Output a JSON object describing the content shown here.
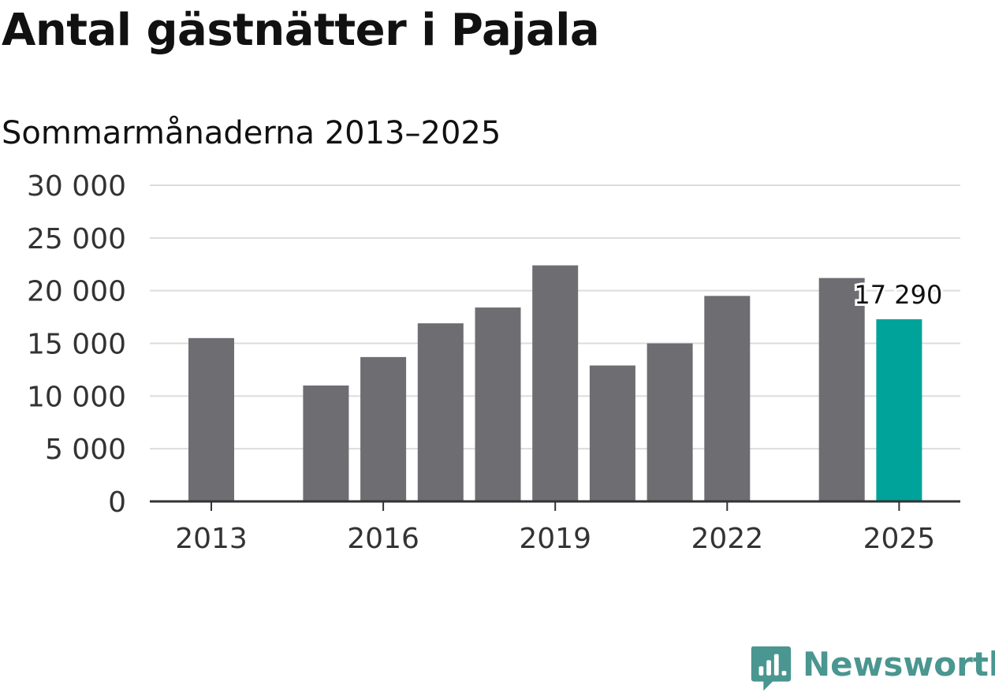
{
  "title": "Antal gästnätter i Pajala",
  "subtitle": "Sommarmånaderna 2013–2025",
  "brand": {
    "name": "Newsworthy",
    "icon": "newsworthy-logo-icon",
    "color": "#4a9690"
  },
  "chart_data": {
    "type": "bar",
    "categories": [
      2013,
      2014,
      2015,
      2016,
      2017,
      2018,
      2019,
      2020,
      2021,
      2022,
      2023,
      2024,
      2025
    ],
    "values": [
      15500,
      null,
      11000,
      13700,
      16900,
      18400,
      22400,
      12900,
      15000,
      19500,
      null,
      21200,
      17290
    ],
    "highlight": {
      "category": 2025,
      "label": "17 290",
      "color": "#00a39a"
    },
    "bar_color": "#6e6d72",
    "ylim": [
      0,
      30000
    ],
    "yticks": [
      0,
      5000,
      10000,
      15000,
      20000,
      25000,
      30000
    ],
    "ytick_labels": [
      "0",
      "5 000",
      "10 000",
      "15 000",
      "20 000",
      "25 000",
      "30 000"
    ],
    "xticks": [
      2013,
      2016,
      2019,
      2022,
      2025
    ],
    "xtick_labels": [
      "2013",
      "2016",
      "2019",
      "2022",
      "2025"
    ],
    "grid": true,
    "xlabel": "",
    "ylabel": ""
  }
}
